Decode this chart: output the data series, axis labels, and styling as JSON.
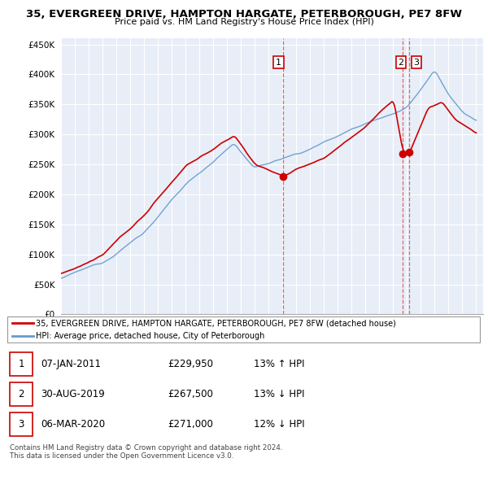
{
  "title": "35, EVERGREEN DRIVE, HAMPTON HARGATE, PETERBOROUGH, PE7 8FW",
  "subtitle": "Price paid vs. HM Land Registry's House Price Index (HPI)",
  "hpi_color": "#6699cc",
  "price_color": "#cc0000",
  "marker_color": "#cc0000",
  "vline_color": "#dd4444",
  "background_color": "#ffffff",
  "chart_bg_color": "#e8eef8",
  "grid_color": "#ffffff",
  "ylim": [
    0,
    460000
  ],
  "yticks": [
    0,
    50000,
    100000,
    150000,
    200000,
    250000,
    300000,
    350000,
    400000,
    450000
  ],
  "sale1_year": 2011.03,
  "sale1_price": 229950,
  "sale2_year": 2019.67,
  "sale2_price": 267500,
  "sale3_year": 2020.18,
  "sale3_price": 271000,
  "legend_line1": "35, EVERGREEN DRIVE, HAMPTON HARGATE, PETERBOROUGH, PE7 8FW (detached house)",
  "legend_line2": "HPI: Average price, detached house, City of Peterborough",
  "table_rows": [
    {
      "num": "1",
      "date": "07-JAN-2011",
      "price": "£229,950",
      "hpi": "13% ↑ HPI"
    },
    {
      "num": "2",
      "date": "30-AUG-2019",
      "price": "£267,500",
      "hpi": "13% ↓ HPI"
    },
    {
      "num": "3",
      "date": "06-MAR-2020",
      "price": "£271,000",
      "hpi": "12% ↓ HPI"
    }
  ],
  "footnote1": "Contains HM Land Registry data © Crown copyright and database right 2024.",
  "footnote2": "This data is licensed under the Open Government Licence v3.0."
}
